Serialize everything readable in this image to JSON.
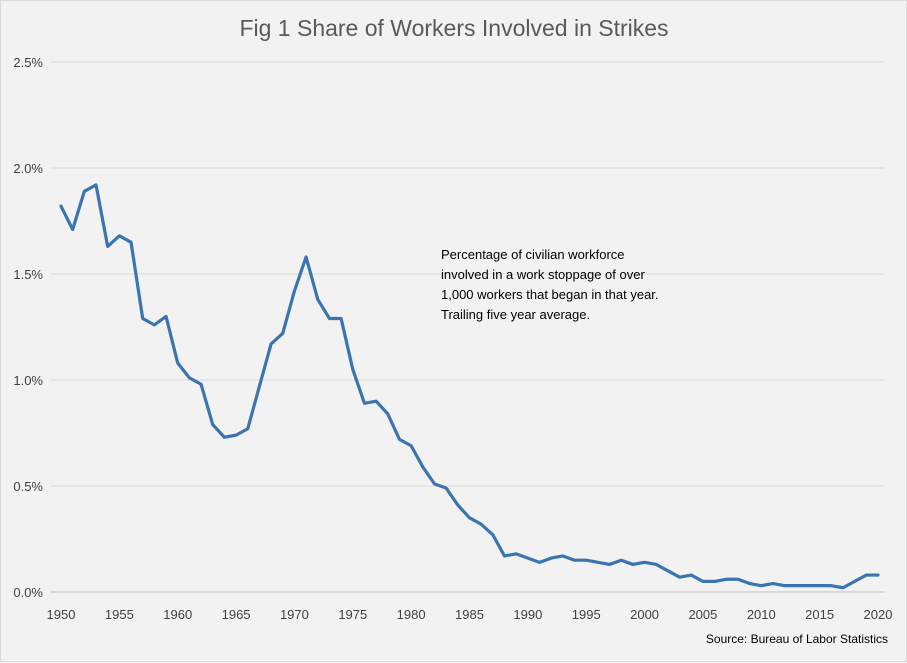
{
  "chart_data": {
    "type": "line",
    "title": "Fig 1 Share of Workers Involved in Strikes",
    "xlabel": "",
    "ylabel": "",
    "xlim": [
      1950,
      2020
    ],
    "ylim": [
      0,
      0.025
    ],
    "y_ticks": [
      0,
      0.005,
      0.01,
      0.015,
      0.02,
      0.025
    ],
    "y_tick_labels": [
      "0.0%",
      "0.5%",
      "1.0%",
      "1.5%",
      "2.0%",
      "2.5%"
    ],
    "x_ticks": [
      1950,
      1955,
      1960,
      1965,
      1970,
      1975,
      1980,
      1985,
      1990,
      1995,
      2000,
      2005,
      2010,
      2015,
      2020
    ],
    "x_tick_labels": [
      "1950",
      "1955",
      "1960",
      "1965",
      "1970",
      "1975",
      "1980",
      "1985",
      "1990",
      "1995",
      "2000",
      "2005",
      "2010",
      "2015",
      "2020"
    ],
    "grid": true,
    "legend": "none",
    "line_color": "#3a75b0",
    "annotation": [
      "Percentage of civilian workforce",
      "involved in a work stoppage of over",
      "1,000 workers that began in that year.",
      "Trailing five year average."
    ],
    "source": "Source: Bureau of Labor Statistics",
    "series": [
      {
        "x": [
          1950,
          1951,
          1952,
          1953,
          1954,
          1955,
          1956,
          1957,
          1958,
          1959,
          1960,
          1961,
          1962,
          1963,
          1964,
          1965,
          1966,
          1967,
          1968,
          1969,
          1970,
          1971,
          1972,
          1973,
          1974,
          1975,
          1976,
          1977,
          1978,
          1979,
          1980,
          1981,
          1982,
          1983,
          1984,
          1985,
          1986,
          1987,
          1988,
          1989,
          1990,
          1991,
          1992,
          1993,
          1994,
          1995,
          1996,
          1997,
          1998,
          1999,
          2000,
          2001,
          2002,
          2003,
          2004,
          2005,
          2006,
          2007,
          2008,
          2009,
          2010,
          2011,
          2012,
          2013,
          2014,
          2015,
          2016,
          2017,
          2018,
          2019,
          2020
        ],
        "values": [
          0.0182,
          0.0171,
          0.0189,
          0.0192,
          0.0163,
          0.0168,
          0.0165,
          0.0129,
          0.0126,
          0.013,
          0.0108,
          0.0101,
          0.0098,
          0.0079,
          0.0073,
          0.0074,
          0.0077,
          0.0097,
          0.0117,
          0.0122,
          0.0142,
          0.0158,
          0.0138,
          0.0129,
          0.0129,
          0.0105,
          0.0089,
          0.009,
          0.0084,
          0.0072,
          0.0069,
          0.0059,
          0.0051,
          0.0049,
          0.0041,
          0.0035,
          0.0032,
          0.0027,
          0.0017,
          0.0018,
          0.0016,
          0.0014,
          0.0016,
          0.0017,
          0.0015,
          0.0015,
          0.0014,
          0.0013,
          0.0015,
          0.0013,
          0.0014,
          0.0013,
          0.001,
          0.0007,
          0.0008,
          0.0005,
          0.0005,
          0.0006,
          0.0006,
          0.0004,
          0.0003,
          0.0004,
          0.0003,
          0.0003,
          0.0003,
          0.0003,
          0.0003,
          0.0002,
          0.0005,
          0.0008,
          0.0008
        ]
      }
    ]
  }
}
